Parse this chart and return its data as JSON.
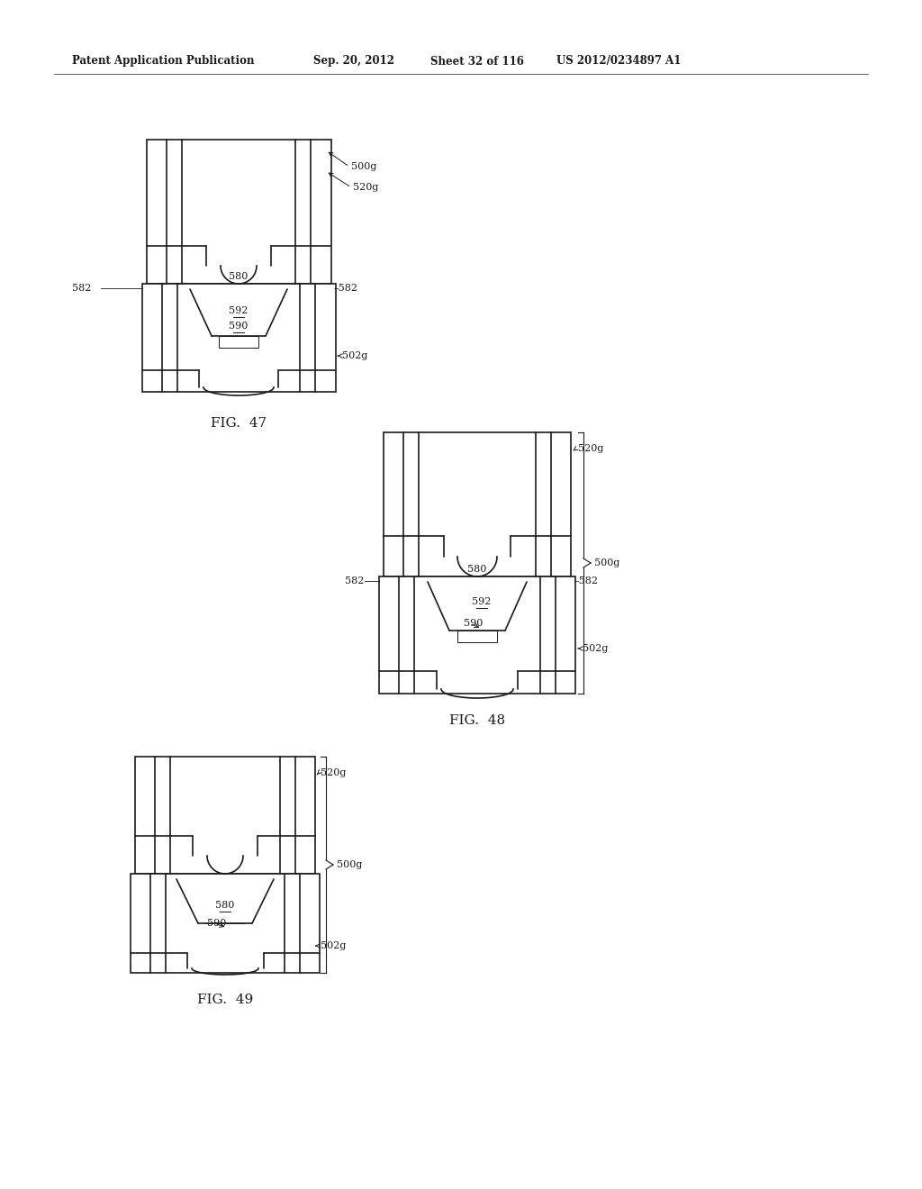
{
  "bg_color": "#ffffff",
  "header_text": "Patent Application Publication",
  "header_date": "Sep. 20, 2012",
  "header_sheet": "Sheet 32 of 116",
  "header_patent": "US 2012/0234897 A1",
  "fig47_label": "FIG.  47",
  "fig48_label": "FIG.  48",
  "fig49_label": "FIG.  49",
  "line_color": "#1a1a1a",
  "line_width": 1.2,
  "thin_line": 0.7
}
